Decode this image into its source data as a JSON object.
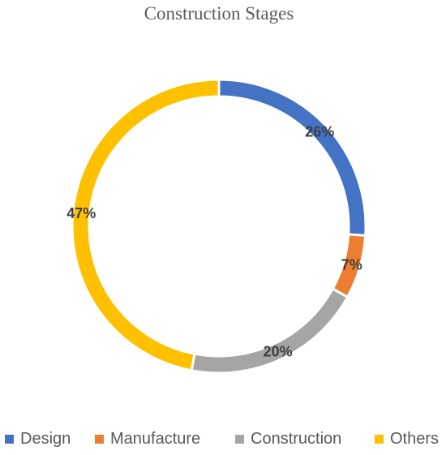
{
  "chart_data": {
    "type": "pie",
    "title": "Construction Stages",
    "categories": [
      "Design",
      "Manufacture",
      "Construction",
      "Others"
    ],
    "values": [
      26,
      7,
      20,
      47
    ],
    "labels": [
      "26%",
      "7%",
      "20%",
      "47%"
    ],
    "unit": "%",
    "colors": [
      "#4472C4",
      "#ED7D31",
      "#A5A5A5",
      "#FFC000"
    ],
    "donut": true,
    "legend_position": "bottom"
  }
}
